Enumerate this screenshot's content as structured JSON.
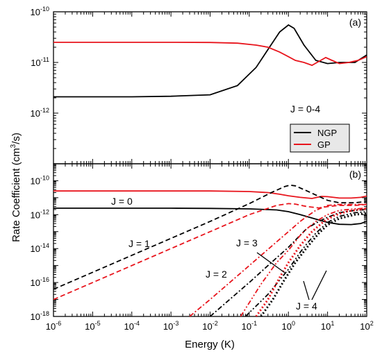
{
  "axes": {
    "ylabel": "Rate Coefficient (cm",
    "ylabel_sup": "3",
    "ylabel_tail": "/s)",
    "xlabel": "Energy (K)",
    "x_tick_base": "10",
    "x_tick_exps": [
      "-6",
      "-5",
      "-4",
      "-3",
      "-2",
      "-1",
      "0",
      "1",
      "2"
    ]
  },
  "chart_data": [
    {
      "type": "line",
      "panel": "(a)",
      "xscale": "log",
      "yscale": "log",
      "xlim": [
        1e-06,
        100
      ],
      "ylim": [
        1e-13,
        1e-10
      ],
      "y_tick_labels": [
        {
          "exp": "-10"
        },
        {
          "exp": "-11"
        },
        {
          "exp": "-12"
        }
      ],
      "annotation": "J = 0-4",
      "legend": {
        "placement": "lower-right",
        "entries": [
          "NGP",
          "GP"
        ]
      },
      "series": [
        {
          "name": "NGP",
          "color": "#000000",
          "dash": "solid",
          "x": [
            1e-06,
            0.0001,
            0.001,
            0.01,
            0.05,
            0.15,
            0.3,
            0.6,
            1.0,
            1.4,
            2.5,
            5,
            10,
            20,
            50,
            100
          ],
          "y": [
            2.1e-12,
            2.1e-12,
            2.15e-12,
            2.3e-12,
            3.5e-12,
            8e-12,
            1.8e-11,
            4e-11,
            5.5e-11,
            4.7e-11,
            2.2e-11,
            1.1e-11,
            9.5e-12,
            1e-11,
            1e-11,
            1.4e-11
          ]
        },
        {
          "name": "GP",
          "color": "#e8141c",
          "dash": "solid",
          "x": [
            1e-06,
            0.0001,
            0.001,
            0.01,
            0.05,
            0.15,
            0.3,
            0.6,
            1.0,
            1.5,
            2.5,
            4,
            6,
            9,
            13,
            20,
            35,
            60,
            100
          ],
          "y": [
            2.5e-11,
            2.5e-11,
            2.5e-11,
            2.48e-11,
            2.4e-11,
            2.2e-11,
            2e-11,
            1.6e-11,
            1.3e-11,
            1.1e-11,
            1e-11,
            8.8e-12,
            1.05e-11,
            1.25e-11,
            1.1e-11,
            9.5e-12,
            1e-11,
            1.1e-11,
            1.3e-11
          ]
        }
      ]
    },
    {
      "type": "line",
      "panel": "(b)",
      "xscale": "log",
      "yscale": "log",
      "xlim": [
        1e-06,
        100
      ],
      "ylim": [
        1e-18,
        1e-09
      ],
      "y_tick_labels": [
        {
          "exp": "-10"
        },
        {
          "exp": "-12"
        },
        {
          "exp": "-14"
        },
        {
          "exp": "-16"
        },
        {
          "exp": "-18"
        }
      ],
      "annotations": [
        "J = 0",
        "J = 1",
        "J = 3",
        "J = 2",
        "J = 4"
      ],
      "series": [
        {
          "color": "#000000",
          "dash": "solid",
          "x": [
            1e-06,
            0.001,
            0.01,
            0.1,
            0.5,
            1,
            2,
            5,
            10,
            20,
            40,
            70,
            100
          ],
          "y": [
            2.4e-12,
            2.4e-12,
            2.35e-12,
            2.2e-12,
            1.9e-12,
            1.5e-12,
            1e-12,
            5.5e-13,
            3.5e-13,
            2.7e-13,
            2.6e-13,
            3e-13,
            4e-13
          ]
        },
        {
          "color": "#e8141c",
          "dash": "solid",
          "x": [
            1e-06,
            0.001,
            0.01,
            0.1,
            0.3,
            0.6,
            1,
            2,
            4,
            7,
            10,
            20,
            40,
            70,
            100
          ],
          "y": [
            2.5e-11,
            2.5e-11,
            2.48e-11,
            2.3e-11,
            2e-11,
            1.6e-11,
            1.3e-11,
            1.05e-11,
            9e-12,
            1.2e-11,
            1.15e-11,
            9.5e-12,
            9.5e-12,
            1.05e-11,
            1.25e-11
          ]
        },
        {
          "color": "#000000",
          "dash": "dashed",
          "x": [
            1e-06,
            0.001,
            0.01,
            0.1,
            0.4,
            0.8,
            1.1,
            1.5,
            3,
            6,
            10,
            20,
            50,
            100
          ],
          "y": [
            4e-17,
            4e-14,
            4e-13,
            4.5e-12,
            2.2e-11,
            4.5e-11,
            5.5e-11,
            5e-11,
            2.5e-11,
            1.2e-11,
            7e-12,
            5e-12,
            5e-12,
            6e-12
          ]
        },
        {
          "color": "#e8141c",
          "dash": "dashed",
          "x": [
            1e-06,
            0.001,
            0.01,
            0.1,
            0.5,
            1,
            1.5,
            3,
            6,
            10,
            20,
            50,
            100
          ],
          "y": [
            1e-17,
            1e-14,
            1e-13,
            1e-12,
            3.5e-12,
            4.5e-12,
            4.2e-12,
            3e-12,
            2.5e-12,
            3e-12,
            3.5e-12,
            3.5e-12,
            4e-12
          ]
        },
        {
          "color": "#000000",
          "dash": "dash-dot",
          "x": [
            0.01,
            0.05,
            0.1,
            0.3,
            1,
            3,
            6,
            10,
            20,
            50,
            100
          ],
          "y": [
            1e-18,
            2.5e-17,
            1e-16,
            1e-15,
            1.2e-14,
            1.6e-13,
            4e-13,
            7e-13,
            1.3e-12,
            1.8e-12,
            2e-12
          ]
        },
        {
          "color": "#e8141c",
          "dash": "dash-dot",
          "x": [
            0.003,
            0.01,
            0.1,
            0.5,
            1,
            2,
            3,
            5,
            10,
            20,
            50,
            100
          ],
          "y": [
            1e-18,
            1e-17,
            1e-15,
            2.5e-14,
            1e-13,
            4e-13,
            8e-13,
            1.8e-12,
            3.5e-12,
            4e-12,
            4e-12,
            4e-12
          ]
        },
        {
          "color": "#000000",
          "dash": "dash-dot-dot",
          "x": [
            0.08,
            0.3,
            1,
            2,
            3,
            5,
            10,
            20,
            50,
            100
          ],
          "y": [
            1e-18,
            2e-17,
            6e-16,
            6e-15,
            2e-14,
            8e-14,
            3.5e-13,
            8e-13,
            1.3e-12,
            1.5e-12
          ]
        },
        {
          "color": "#e8141c",
          "dash": "dash-dot-dot",
          "x": [
            0.06,
            0.2,
            0.5,
            1,
            2,
            3,
            5,
            10,
            20,
            50,
            100
          ],
          "y": [
            1e-18,
            8e-17,
            1.5e-15,
            8e-15,
            6e-14,
            1.5e-13,
            4e-13,
            1e-12,
            1.8e-12,
            2.2e-12,
            2.4e-12
          ]
        },
        {
          "color": "#000000",
          "dash": "dotted",
          "x": [
            0.2,
            0.4,
            0.8,
            1.5,
            3,
            6,
            10,
            20,
            50,
            100
          ],
          "y": [
            1e-18,
            1e-17,
            1.5e-16,
            1.5e-15,
            1.2e-14,
            8e-14,
            2.5e-13,
            6e-13,
            1e-12,
            1.2e-12
          ]
        },
        {
          "color": "#e8141c",
          "dash": "dotted",
          "x": [
            0.15,
            0.3,
            0.6,
            1,
            2,
            4,
            8,
            15,
            30,
            60,
            100
          ],
          "y": [
            1e-18,
            1e-17,
            2e-16,
            1.5e-15,
            1.5e-14,
            1e-13,
            4e-13,
            9e-13,
            1.5e-12,
            2e-12,
            2.2e-12
          ]
        }
      ]
    }
  ]
}
